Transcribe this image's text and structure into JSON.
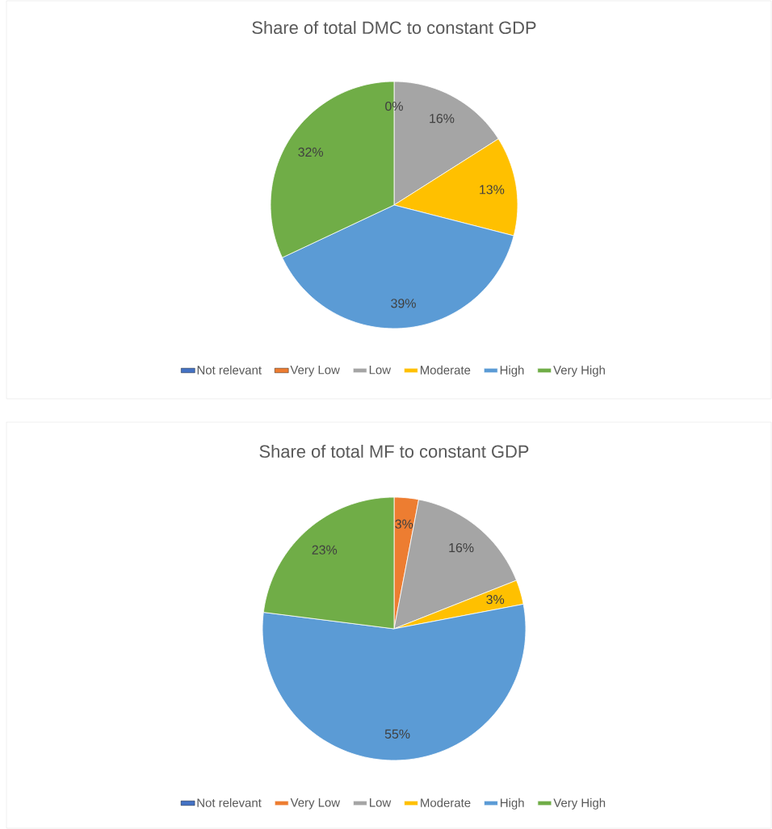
{
  "chart_data": [
    {
      "type": "pie",
      "title": "Share of total DMC to constant GDP",
      "categories": [
        "Not relevant",
        "Very Low",
        "Low",
        "Moderate",
        "High",
        "Very High"
      ],
      "values": [
        0,
        0,
        16,
        13,
        39,
        32
      ],
      "colors": [
        "#4472c4",
        "#ed7d31",
        "#a5a5a5",
        "#ffc000",
        "#5b9bd5",
        "#70ad47"
      ],
      "value_labels": [
        null,
        "0%",
        "16%",
        "13%",
        "39%",
        "32%"
      ],
      "legend": "bottom"
    },
    {
      "type": "pie",
      "title": "Share of total MF to constant GDP",
      "categories": [
        "Not relevant",
        "Very Low",
        "Low",
        "Moderate",
        "High",
        "Very High"
      ],
      "values": [
        0,
        3,
        16,
        3,
        55,
        23
      ],
      "colors": [
        "#4472c4",
        "#ed7d31",
        "#a5a5a5",
        "#ffc000",
        "#5b9bd5",
        "#70ad47"
      ],
      "value_labels": [
        null,
        "3%",
        "16%",
        "3%",
        "55%",
        "23%"
      ],
      "legend": "bottom"
    }
  ]
}
